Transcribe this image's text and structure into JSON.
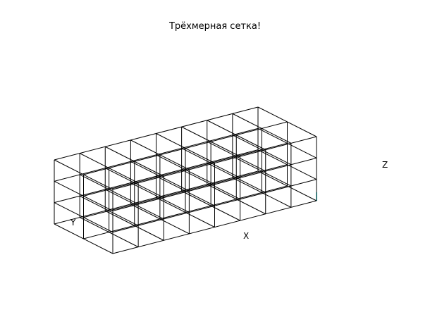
{
  "title": "Трёхмерная сетка!",
  "grid": {
    "cells_x": 8,
    "cells_y": 2,
    "cells_z": 3,
    "line_color": "#000000",
    "accent_color": "#008080"
  },
  "axes": {
    "x_label": "X",
    "y_label": "Y",
    "z_label": "Z"
  }
}
